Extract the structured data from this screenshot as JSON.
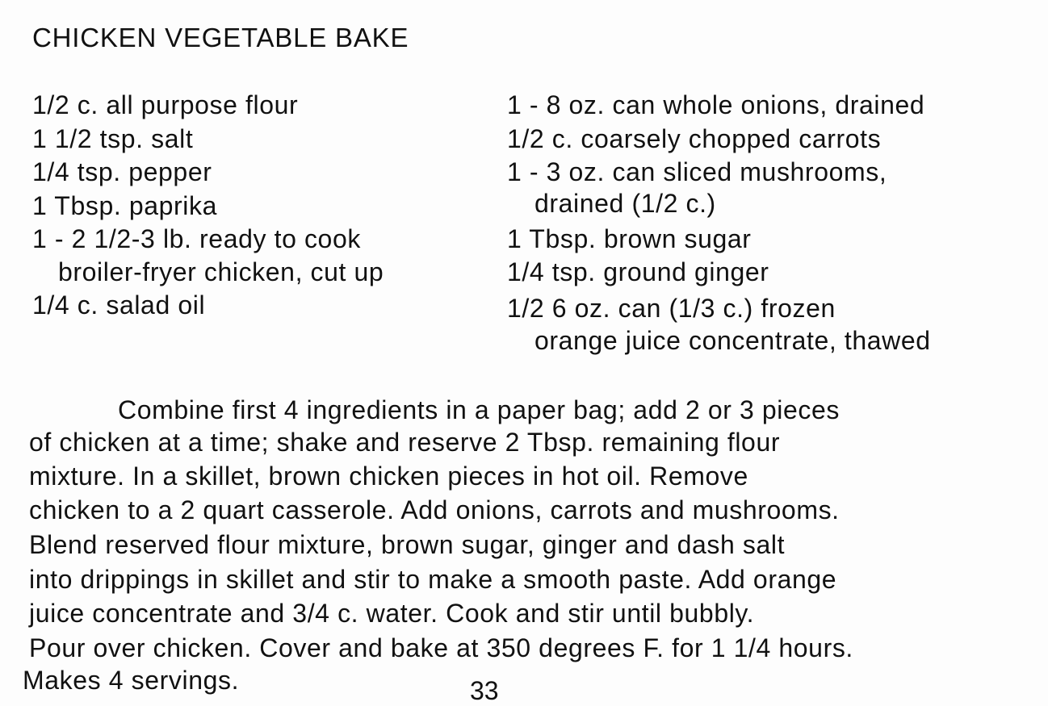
{
  "title": "CHICKEN VEGETABLE BAKE",
  "ingredients_left": [
    "1/2 c. all purpose flour",
    "1 1/2 tsp. salt",
    "1/4 tsp. pepper",
    "1 Tbsp. paprika",
    "1 - 2 1/2-3 lb. ready to cook",
    "broiler-fryer chicken, cut up",
    "1/4 c. salad oil"
  ],
  "ingredients_right": [
    "1 - 8 oz. can whole onions, drained",
    "1/2 c. coarsely chopped carrots",
    "1 - 3 oz. can sliced mushrooms,",
    "drained (1/2 c.)",
    "1 Tbsp. brown sugar",
    "1/4 tsp. ground ginger",
    "1/2 6 oz. can (1/3 c.) frozen",
    "orange juice concentrate, thawed"
  ],
  "directions": [
    "Combine first 4 ingredients in a paper bag; add 2 or 3 pieces",
    "of chicken at a time; shake and reserve 2 Tbsp. remaining flour",
    "mixture.  In a skillet, brown chicken pieces in hot oil.  Remove",
    "chicken to a 2 quart casserole.  Add onions, carrots and mushrooms.",
    "Blend reserved flour mixture, brown sugar, ginger and dash salt",
    "into drippings in skillet and stir to make a smooth paste.  Add orange",
    "juice concentrate and 3/4 c. water.  Cook and stir until bubbly.",
    "Pour over chicken.  Cover and bake at 350 degrees F. for 1 1/4 hours.",
    "Makes 4 servings."
  ],
  "page_number": "33"
}
